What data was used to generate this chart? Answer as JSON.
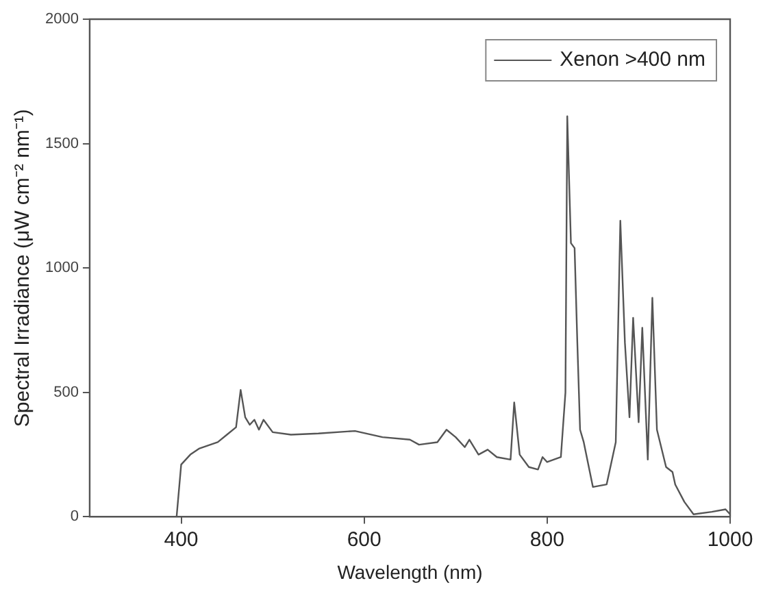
{
  "chart_data": {
    "type": "line",
    "xlabel": "Wavelength (nm)",
    "ylabel": "Spectral Irradiance (μW cm⁻² nm⁻¹)",
    "xlim": [
      300,
      1000
    ],
    "xticks": [
      400,
      600,
      800,
      1000
    ],
    "ylim": [
      0,
      2000
    ],
    "yticks": [
      0,
      500,
      1000,
      1500,
      2000
    ],
    "grid": false,
    "legend": "top right",
    "marker": "none",
    "line_style": "solid",
    "series": [
      {
        "name": "Xenon >400 nm",
        "color": "#555555",
        "x": [
          395,
          400,
          410,
          420,
          440,
          450,
          460,
          465,
          470,
          475,
          480,
          485,
          490,
          500,
          520,
          550,
          590,
          620,
          650,
          660,
          680,
          690,
          700,
          710,
          715,
          725,
          735,
          745,
          760,
          764,
          770,
          780,
          790,
          795,
          800,
          815,
          820,
          822,
          826,
          830,
          833,
          836,
          840,
          850,
          865,
          875,
          880,
          885,
          890,
          894,
          900,
          904,
          910,
          915,
          920,
          930,
          937,
          940,
          950,
          960,
          980,
          995,
          1000
        ],
        "values": [
          0,
          210,
          250,
          275,
          300,
          330,
          360,
          510,
          400,
          370,
          390,
          350,
          390,
          340,
          330,
          335,
          345,
          320,
          310,
          290,
          300,
          350,
          320,
          280,
          310,
          250,
          270,
          240,
          230,
          460,
          250,
          200,
          190,
          240,
          220,
          240,
          500,
          1610,
          1100,
          1080,
          700,
          350,
          300,
          120,
          130,
          300,
          1190,
          700,
          400,
          800,
          380,
          760,
          230,
          880,
          350,
          200,
          180,
          130,
          60,
          10,
          20,
          30,
          10
        ]
      }
    ]
  }
}
